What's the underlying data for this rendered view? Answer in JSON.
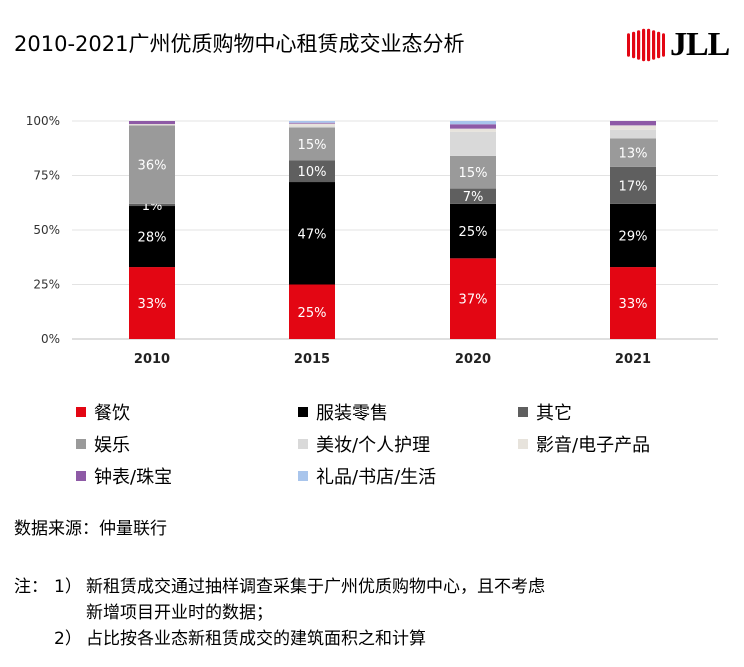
{
  "title": "2010-2021广州优质购物中心租赁成交业态分析",
  "logo": {
    "text": "JLL",
    "color": "#e30613"
  },
  "chart_data": {
    "type": "bar",
    "stacked": true,
    "categories": [
      "2010",
      "2015",
      "2020",
      "2021"
    ],
    "ylim": [
      0,
      100
    ],
    "yticks": [
      "0%",
      "25%",
      "50%",
      "75%",
      "100%"
    ],
    "grid": true,
    "legend_position": "bottom",
    "series": [
      {
        "name": "餐饮",
        "color": "#e30613",
        "label_color": "#ffffff",
        "values": [
          33,
          25,
          37,
          33
        ],
        "labels": [
          "33%",
          "25%",
          "37%",
          "33%"
        ]
      },
      {
        "name": "服装零售",
        "color": "#000000",
        "label_color": "#ffffff",
        "values": [
          28,
          47,
          25,
          29
        ],
        "labels": [
          "28%",
          "47%",
          "25%",
          "29%"
        ]
      },
      {
        "name": "其它",
        "color": "#5f5f5f",
        "label_color": "#ffffff",
        "values": [
          1,
          10,
          7,
          17
        ],
        "labels": [
          "1%",
          "10%",
          "7%",
          "17%"
        ]
      },
      {
        "name": "娱乐",
        "color": "#9a9a9a",
        "label_color": "#ffffff",
        "values": [
          36,
          15,
          15,
          13
        ],
        "labels": [
          "36%",
          "15%",
          "15%",
          "13%"
        ]
      },
      {
        "name": "美妆/个人护理",
        "color": "#d9d9d9",
        "label_color": "#000000",
        "values": [
          0,
          0.5,
          11,
          4
        ],
        "labels": [
          "",
          "",
          "",
          ""
        ]
      },
      {
        "name": "影音/电子产品",
        "color": "#e7e3dc",
        "label_color": "#000000",
        "values": [
          0.6,
          1.3,
          1.5,
          2
        ],
        "labels": [
          "",
          "",
          "",
          ""
        ]
      },
      {
        "name": "钟表/珠宝",
        "color": "#8e5aa6",
        "label_color": "#000000",
        "values": [
          1.4,
          0.4,
          2,
          2
        ],
        "labels": [
          "",
          "",
          "",
          ""
        ]
      },
      {
        "name": "礼品/书店/生活",
        "color": "#a9c5ec",
        "label_color": "#000000",
        "values": [
          0,
          0.8,
          1.5,
          0
        ],
        "labels": [
          "",
          "",
          "",
          ""
        ]
      }
    ]
  },
  "source": "数据来源：仲量联行",
  "notes": {
    "prefix": "注：",
    "n1_num": "1）",
    "n1_line1": "新租赁成交通过抽样调查采集于广州优质购物中心，且不考虑",
    "n1_line2": "新增项目开业时的数据；",
    "n2_num": "2）",
    "n2_text": "占比按各业态新租赁成交的建筑面积之和计算"
  }
}
